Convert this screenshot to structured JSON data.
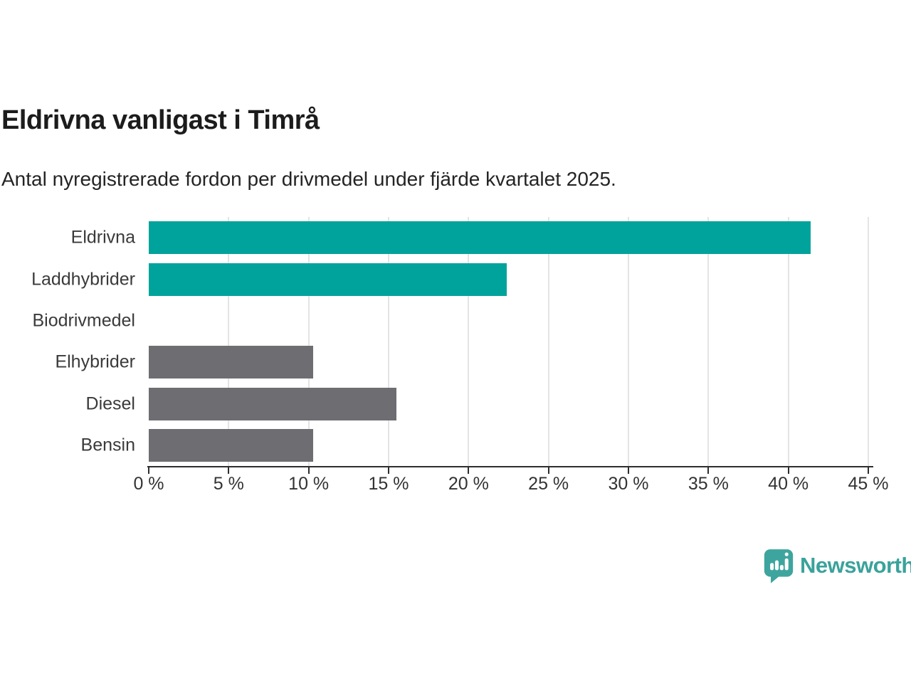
{
  "header": {
    "title": "Eldrivna vanligast i Timrå",
    "subtitle": "Antal nyregistrerade fordon per drivmedel under fjärde kvartalet 2025."
  },
  "chart_data": {
    "type": "bar",
    "orientation": "horizontal",
    "categories": [
      "Eldrivna",
      "Laddhybrider",
      "Biodrivmedel",
      "Elhybrider",
      "Diesel",
      "Bensin"
    ],
    "values": [
      41.4,
      22.4,
      0,
      10.3,
      15.5,
      10.3
    ],
    "unit": "%",
    "xlim": [
      0,
      45
    ],
    "x_tick_values": [
      0,
      5,
      10,
      15,
      20,
      25,
      30,
      35,
      40,
      45
    ],
    "x_tick_labels": [
      "0 %",
      "5 %",
      "10 %",
      "15 %",
      "20 %",
      "25 %",
      "30 %",
      "35 %",
      "40 %",
      "45 %"
    ],
    "grid": "vertical",
    "bar_colors": [
      "#00a39c",
      "#00a39c",
      "#00a39c",
      "#6d6d72",
      "#6d6d72",
      "#6d6d72"
    ],
    "highlight_color": "#00a39c",
    "default_color": "#6d6d72"
  },
  "branding": {
    "logo_text": "Newsworthy",
    "logo_color": "#3aa29b",
    "logo_icon": "newsworthy-speech-bubble-chart-icon"
  },
  "colors": {
    "background": "#ffffff",
    "axis": "#2e2e2e",
    "gridline": "#e4e4e4",
    "text_dark": "#1c1c1c",
    "text_label": "#3a3a3a"
  }
}
